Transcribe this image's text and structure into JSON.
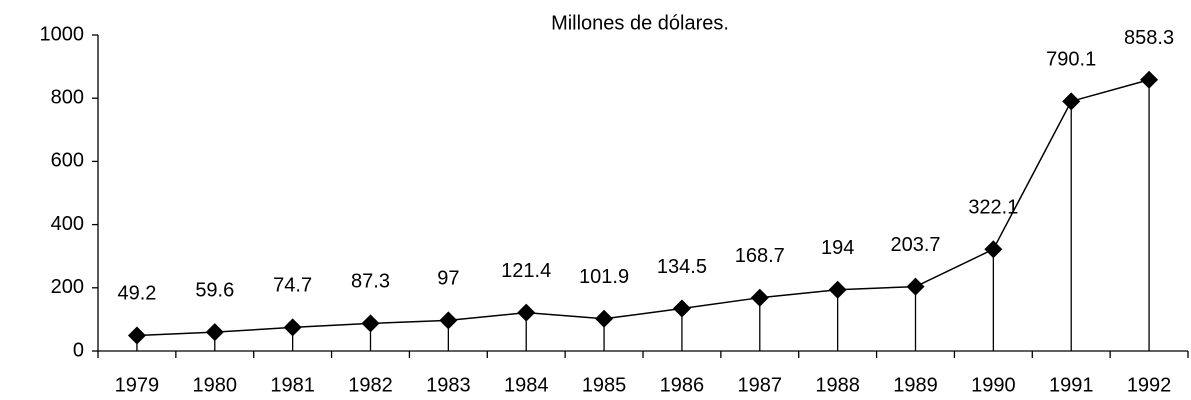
{
  "chart_data": {
    "type": "line",
    "title": "Millones de dólares.",
    "categories": [
      "1979",
      "1980",
      "1981",
      "1982",
      "1983",
      "1984",
      "1985",
      "1986",
      "1987",
      "1988",
      "1989",
      "1990",
      "1991",
      "1992"
    ],
    "values": [
      49.2,
      59.6,
      74.7,
      87.3,
      97,
      121.4,
      101.9,
      134.5,
      168.7,
      194,
      203.7,
      322.1,
      790.1,
      858.3
    ],
    "color": "#000000",
    "ylim": [
      0,
      1000
    ],
    "yticks": [
      0,
      200,
      400,
      600,
      800,
      1000
    ],
    "grid": false
  }
}
